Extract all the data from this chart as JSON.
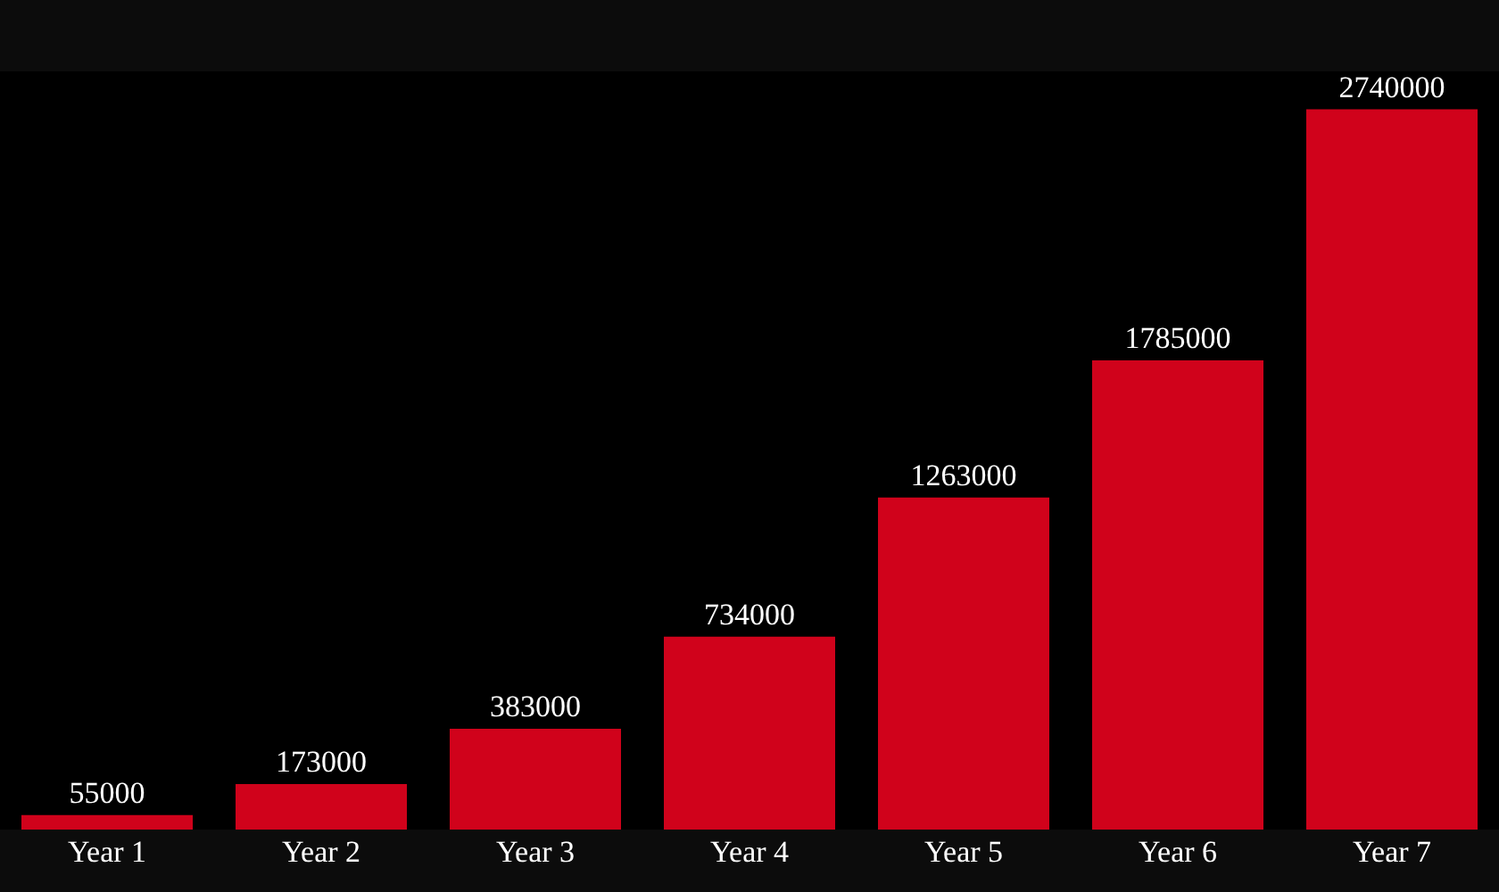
{
  "chart_data": {
    "type": "bar",
    "categories": [
      "Year 1",
      "Year 2",
      "Year 3",
      "Year 4",
      "Year 5",
      "Year 6",
      "Year 7"
    ],
    "values": [
      55000,
      173000,
      383000,
      734000,
      1263000,
      1785000,
      2740000
    ],
    "color": "#d0021b",
    "data_labels": true,
    "tick_labels": "x"
  }
}
